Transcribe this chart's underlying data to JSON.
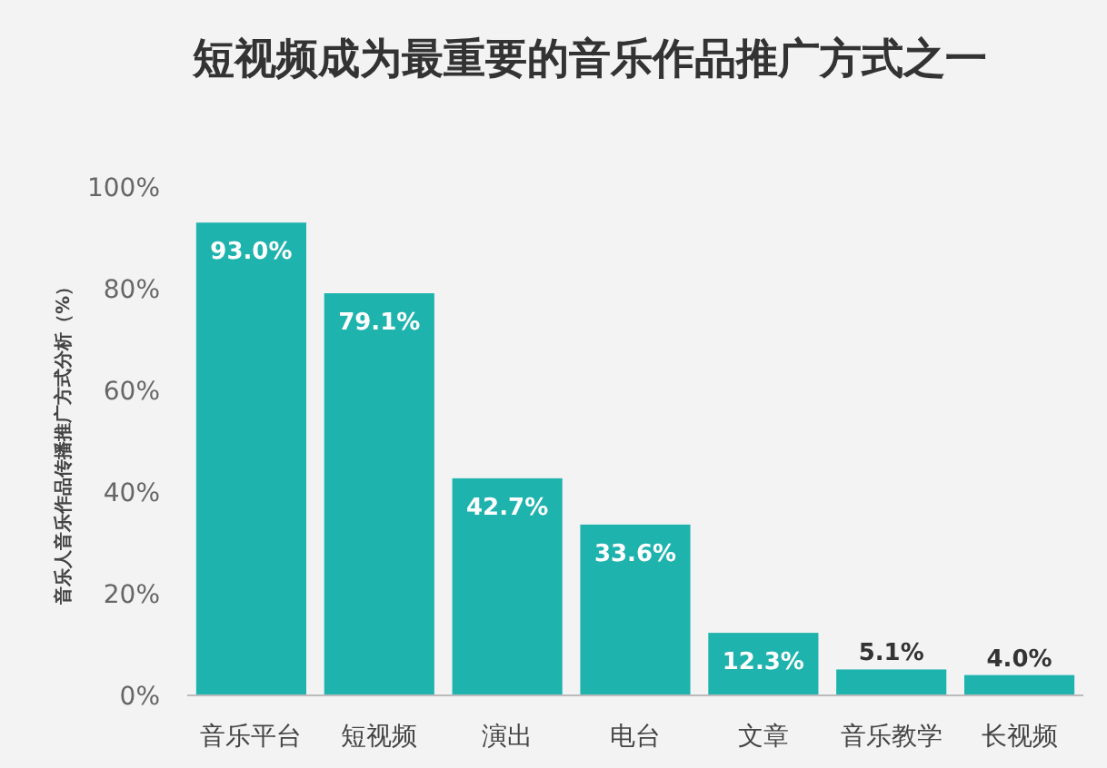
{
  "chart_data": {
    "type": "bar",
    "title": "短视频成为最重要的音乐作品推广方式之一",
    "ylabel": "音乐人音乐作品传播推广方式分析（%）",
    "categories": [
      "音乐平台",
      "短视频",
      "演出",
      "电台",
      "文章",
      "音乐教学",
      "长视频"
    ],
    "values": [
      93.0,
      79.1,
      42.7,
      33.6,
      12.3,
      5.1,
      4.0
    ],
    "value_labels": [
      "93.0%",
      "79.1%",
      "42.7%",
      "33.6%",
      "12.3%",
      "5.1%",
      "4.0%"
    ],
    "color": "#1fb3ae",
    "ylim": [
      0,
      100
    ],
    "yticks": [
      {
        "value": 0,
        "label": "0%"
      },
      {
        "value": 20,
        "label": "20%"
      },
      {
        "value": 40,
        "label": "40%"
      },
      {
        "value": 60,
        "label": "60%"
      },
      {
        "value": 80,
        "label": "80%"
      },
      {
        "value": 100,
        "label": "100%"
      }
    ],
    "grid": false
  }
}
